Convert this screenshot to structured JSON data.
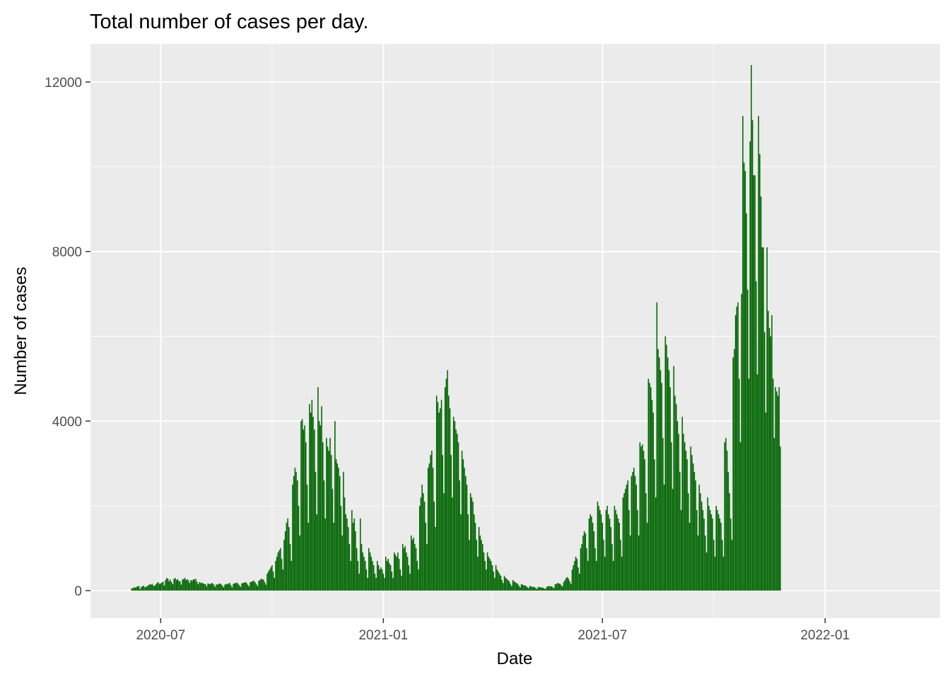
{
  "chart_data": {
    "type": "bar",
    "title": "Total number of cases per day.",
    "xlabel": "Date",
    "ylabel": "Number of cases",
    "x_range": [
      "2020-05-04",
      "2022-04-06"
    ],
    "ylim": [
      -650,
      12900
    ],
    "y_ticks": [
      {
        "value": 0,
        "label": "0"
      },
      {
        "value": 4000,
        "label": "4000"
      },
      {
        "value": 8000,
        "label": "8000"
      },
      {
        "value": 12000,
        "label": "12000"
      }
    ],
    "x_ticks": [
      {
        "date": "2020-07-01",
        "label": "2020-07"
      },
      {
        "date": "2021-01-01",
        "label": "2021-01"
      },
      {
        "date": "2021-07-01",
        "label": "2021-07"
      },
      {
        "date": "2022-01-01",
        "label": "2022-01"
      }
    ],
    "x_minor_ticks": [
      "2020-10-01",
      "2021-04-01",
      "2021-10-01"
    ],
    "bar_color": "#006400",
    "panel_background": "#ebebeb",
    "grid_color": "#ffffff",
    "grid": true,
    "start_date": "2020-06-07",
    "values": [
      50,
      60,
      80,
      70,
      90,
      100,
      110,
      40,
      90,
      100,
      120,
      80,
      90,
      110,
      130,
      150,
      140,
      160,
      120,
      110,
      150,
      180,
      200,
      160,
      170,
      190,
      210,
      120,
      250,
      300,
      280,
      220,
      260,
      200,
      150,
      280,
      300,
      250,
      270,
      230,
      220,
      140,
      260,
      280,
      300,
      250,
      270,
      240,
      180,
      250,
      230,
      270,
      260,
      280,
      210,
      150,
      200,
      180,
      190,
      170,
      160,
      150,
      100,
      170,
      160,
      150,
      180,
      170,
      140,
      90,
      150,
      140,
      160,
      170,
      150,
      120,
      80,
      140,
      160,
      150,
      170,
      180,
      130,
      80,
      160,
      170,
      180,
      190,
      160,
      130,
      90,
      170,
      180,
      190,
      200,
      180,
      140,
      100,
      200,
      210,
      220,
      240,
      200,
      160,
      110,
      230,
      250,
      280,
      270,
      260,
      200,
      140,
      400,
      450,
      500,
      550,
      600,
      450,
      300,
      700,
      800,
      900,
      950,
      1000,
      750,
      500,
      1200,
      1400,
      1600,
      1700,
      1500,
      1100,
      700,
      2500,
      2700,
      2900,
      2800,
      2600,
      2000,
      1300,
      4000,
      4050,
      3800,
      3900,
      3500,
      2500,
      1600,
      4400,
      4200,
      4500,
      4100,
      3800,
      2800,
      1800,
      4800,
      4000,
      3900,
      4350,
      3500,
      2600,
      1700,
      3600,
      3400,
      3300,
      3600,
      3200,
      2400,
      1600,
      4000,
      3100,
      3000,
      2900,
      2700,
      2000,
      1300,
      2800,
      2200,
      1800,
      1700,
      1500,
      1100,
      700,
      1900,
      1600,
      1700,
      1400,
      1000,
      700,
      400,
      1700,
      1100,
      900,
      800,
      700,
      500,
      300,
      1000,
      900,
      800,
      700,
      600,
      400,
      300,
      700,
      600,
      500,
      550,
      500,
      400,
      300,
      800,
      700,
      750,
      650,
      600,
      450,
      300,
      900,
      850,
      800,
      900,
      750,
      500,
      350,
      1100,
      1000,
      1050,
      900,
      800,
      600,
      400,
      1300,
      1200,
      1250,
      1100,
      1000,
      700,
      500,
      2000,
      2200,
      2500,
      2300,
      2100,
      1600,
      1100,
      2900,
      3000,
      3200,
      3300,
      2900,
      2100,
      1500,
      4600,
      4450,
      4200,
      4300,
      4500,
      3200,
      2300,
      4800,
      5000,
      5200,
      4600,
      4300,
      3200,
      2200,
      4100,
      4000,
      3800,
      3700,
      3500,
      2600,
      1800,
      3300,
      3100,
      2900,
      2700,
      2500,
      1800,
      1200,
      2300,
      2200,
      2100,
      1800,
      1600,
      1200,
      800,
      1500,
      1300,
      1200,
      1100,
      900,
      700,
      500,
      900,
      800,
      750,
      700,
      600,
      450,
      300,
      600,
      500,
      450,
      400,
      350,
      250,
      180,
      350,
      300,
      280,
      250,
      220,
      160,
      110,
      250,
      220,
      200,
      180,
      160,
      120,
      80,
      150,
      140,
      130,
      120,
      110,
      80,
      60,
      110,
      100,
      90,
      90,
      80,
      60,
      40,
      90,
      80,
      80,
      70,
      70,
      50,
      40,
      90,
      100,
      110,
      100,
      100,
      80,
      60,
      150,
      160,
      180,
      170,
      160,
      130,
      100,
      200,
      250,
      300,
      320,
      280,
      220,
      160,
      500,
      600,
      700,
      800,
      750,
      550,
      400,
      1000,
      1100,
      1300,
      1400,
      1350,
      1000,
      700,
      1700,
      1800,
      1750,
      1600,
      1400,
      1000,
      700,
      2100,
      2000,
      1900,
      1800,
      1600,
      1200,
      800,
      1900,
      2000,
      1800,
      1700,
      1500,
      1100,
      700,
      2000,
      1900,
      1800,
      1700,
      1600,
      1200,
      800,
      2200,
      2300,
      2400,
      2500,
      2600,
      1900,
      1300,
      2700,
      2800,
      2900,
      2700,
      2500,
      1900,
      1300,
      3500,
      3400,
      3450,
      3300,
      3100,
      2300,
      1600,
      5000,
      4900,
      4800,
      4500,
      4200,
      3100,
      2200,
      6800,
      5700,
      5500,
      5200,
      4900,
      3600,
      2500,
      6000,
      5800,
      5500,
      5200,
      4800,
      3500,
      2400,
      5300,
      4600,
      4400,
      4000,
      3700,
      2800,
      1900,
      4100,
      3700,
      3500,
      3300,
      3100,
      2300,
      1600,
      3400,
      3200,
      3000,
      2800,
      2600,
      1900,
      1300,
      2500,
      2300,
      2100,
      1900,
      1700,
      1300,
      900,
      2200,
      2000,
      1900,
      1800,
      1700,
      1200,
      800,
      2000,
      1900,
      1800,
      1700,
      1600,
      1200,
      800,
      3500,
      3600,
      3300,
      2800,
      2300,
      1700,
      1200,
      5500,
      5700,
      6500,
      6700,
      6800,
      5000,
      3500,
      7000,
      11200,
      10100,
      9900,
      8900,
      7100,
      5000,
      10600,
      12400,
      11100,
      9800,
      9800,
      7300,
      5100,
      11200,
      10300,
      9300,
      8100,
      8100,
      6100,
      4200,
      8100,
      6600,
      6200,
      6000,
      6500,
      5000,
      3600,
      4800,
      4700,
      4600,
      4800,
      3400
    ]
  }
}
